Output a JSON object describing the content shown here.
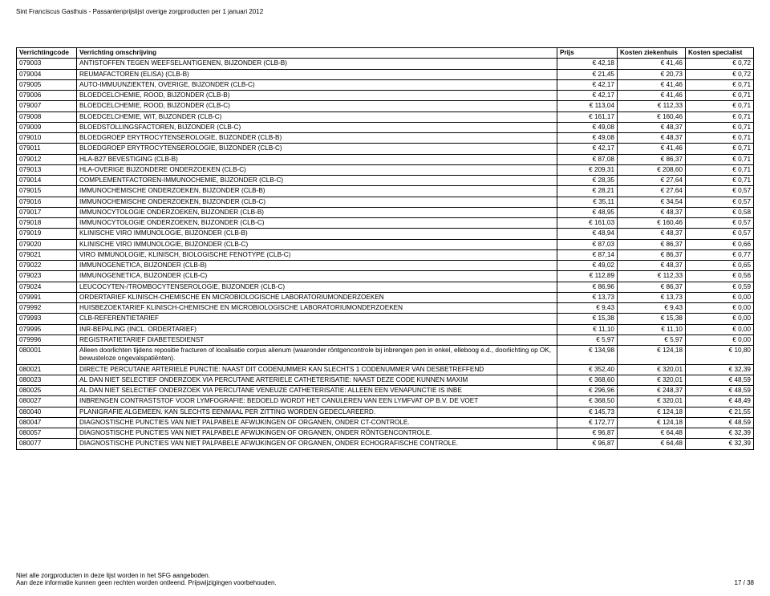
{
  "header": {
    "title": "Sint Franciscus Gasthuis - Passantenprijslijst overige zorgproducten per 1 januari 2012"
  },
  "table": {
    "columns": [
      "Verrichtingcode",
      "Verrichting omschrijving",
      "Prijs",
      "Kosten ziekenhuis",
      "Kosten specialist"
    ],
    "rows": [
      [
        "079003",
        "ANTISTOFFEN TEGEN WEEFSELANTIGENEN, BIJZONDER (CLB-B)",
        "€ 42,18",
        "€ 41,46",
        "€ 0,72"
      ],
      [
        "079004",
        "REUMAFACTOREN (ELISA) (CLB-B)",
        "€ 21,45",
        "€ 20,73",
        "€ 0,72"
      ],
      [
        "079005",
        "AUTO-IMMUUNZIEKTEN, OVERIGE, BIJZONDER (CLB-C)",
        "€ 42,17",
        "€ 41,46",
        "€ 0,71"
      ],
      [
        "079006",
        "BLOEDCELCHEMIE, ROOD, BIJZONDER (CLB-B)",
        "€ 42,17",
        "€ 41,46",
        "€ 0,71"
      ],
      [
        "079007",
        "BLOEDCELCHEMIE, ROOD, BIJZONDER (CLB-C)",
        "€ 113,04",
        "€ 112,33",
        "€ 0,71"
      ],
      [
        "079008",
        "BLOEDCELCHEMIE, WIT, BIJZONDER (CLB-C)",
        "€ 161,17",
        "€ 160,46",
        "€ 0,71"
      ],
      [
        "079009",
        "BLOEDSTOLLINGSFACTOREN, BIJZONDER (CLB-C)",
        "€ 49,08",
        "€ 48,37",
        "€ 0,71"
      ],
      [
        "079010",
        "BLOEDGROEP ERYTROCYTENSEROLOGIE, BIJZONDER (CLB-B)",
        "€ 49,08",
        "€ 48,37",
        "€ 0,71"
      ],
      [
        "079011",
        "BLOEDGROEP ERYTROCYTENSEROLOGIE, BIJZONDER (CLB-C)",
        "€ 42,17",
        "€ 41,46",
        "€ 0,71"
      ],
      [
        "079012",
        "HLA-B27 BEVESTIGING (CLB-B)",
        "€ 87,08",
        "€ 86,37",
        "€ 0,71"
      ],
      [
        "079013",
        "HLA-OVERIGE BIJZONDERE ONDERZOEKEN (CLB-C)",
        "€ 209,31",
        "€ 208,60",
        "€ 0,71"
      ],
      [
        "079014",
        "COMPLEMENTFACTOREN-IMMUNOCHEMIE, BIJZONDER (CLB-C)",
        "€ 28,35",
        "€ 27,64",
        "€ 0,71"
      ],
      [
        "079015",
        "IMMUNOCHEMISCHE ONDERZOEKEN, BIJZONDER (CLB-B)",
        "€ 28,21",
        "€ 27,64",
        "€ 0,57"
      ],
      [
        "079016",
        "IMMUNOCHEMISCHE ONDERZOEKEN, BIJZONDER (CLB-C)",
        "€ 35,11",
        "€ 34,54",
        "€ 0,57"
      ],
      [
        "079017",
        "IMMUNOCYTOLOGIE ONDERZOEKEN, BIJZONDER (CLB-B)",
        "€ 48,95",
        "€ 48,37",
        "€ 0,58"
      ],
      [
        "079018",
        "IMMUNOCYTOLOGIE ONDERZOEKEN, BIJZONDER (CLB-C)",
        "€ 161,03",
        "€ 160,46",
        "€ 0,57"
      ],
      [
        "079019",
        "KLINISCHE VIRO IMMUNOLOGIE, BIJZONDER (CLB-B)",
        "€ 48,94",
        "€ 48,37",
        "€ 0,57"
      ],
      [
        "079020",
        "KLINISCHE VIRO IMMUNOLOGIE, BIJZONDER (CLB-C)",
        "€ 87,03",
        "€ 86,37",
        "€ 0,66"
      ],
      [
        "079021",
        "VIRO IMMUNOLOGIE, KLINISCH, BIOLOGISCHE FENOTYPE (CLB-C)",
        "€ 87,14",
        "€ 86,37",
        "€ 0,77"
      ],
      [
        "079022",
        "IMMUNOGENETICA, BIJZONDER (CLB-B)",
        "€ 49,02",
        "€ 48,37",
        "€ 0,65"
      ],
      [
        "079023",
        "IMMUNOGENETICA, BIJZONDER (CLB-C)",
        "€ 112,89",
        "€ 112,33",
        "€ 0,56"
      ],
      [
        "079024",
        "LEUCOCYTEN-/TROMBOCYTENSEROLOGIE, BIJZONDER (CLB-C)",
        "€ 86,96",
        "€ 86,37",
        "€ 0,59"
      ],
      [
        "079991",
        "ORDERTARIEF KLINISCH-CHEMISCHE EN MICROBIOLOGISCHE LABORATORIUMONDERZOEKEN",
        "€ 13,73",
        "€ 13,73",
        "€ 0,00"
      ],
      [
        "079992",
        "HUISBEZOEKTARIEF KLINISCH-CHEMISCHE EN MICROBIOLOGISCHE LABORATORIUMONDERZOEKEN",
        "€ 9,43",
        "€ 9,43",
        "€ 0,00"
      ],
      [
        "079993",
        "CLB-REFERENTIETARIEF",
        "€ 15,38",
        "€ 15,38",
        "€ 0,00"
      ],
      [
        "079995",
        "INR-BEPALING (INCL. ORDERTARIEF)",
        "€ 11,10",
        "€ 11,10",
        "€ 0,00"
      ],
      [
        "079996",
        "REGISTRATIETARIEF DIABETESDIENST",
        "€ 5,97",
        "€ 5,97",
        "€ 0,00"
      ],
      [
        "080001",
        "Alleen doorlichten tijdens repositie fracturen of localisatie corpus alienum (waaronder röntgencontrole bij inbrengen pen in enkel, elleboog e.d., doorlichting op OK, bewusteloze ongevalspatiënten).",
        "€ 134,98",
        "€ 124,18",
        "€ 10,80"
      ],
      [
        "080021",
        "DIRECTE PERCUTANE ARTERIELE PUNCTIE: NAAST DIT CODENUMMER KAN SLECHTS 1 CODENUMMER VAN DESBETREFFEND",
        "€ 352,40",
        "€ 320,01",
        "€ 32,39"
      ],
      [
        "080023",
        "AL DAN NIET SELECTIEF ONDERZOEK VIA PERCUTANE ARTERIELE CATHETERISATIE: NAAST DEZE CODE KUNNEN MAXIM",
        "€ 368,60",
        "€ 320,01",
        "€ 48,59"
      ],
      [
        "080025",
        "AL DAN NIET SELECTIEF ONDERZOEK VIA PERCUTANE VENEUZE CATHETERISATIE: ALLEEN EEN VENAPUNCTIE IS INBE",
        "€ 296,96",
        "€ 248,37",
        "€ 48,59"
      ],
      [
        "080027",
        "INBRENGEN CONTRASTSTOF VOOR LYMFOGRAFIE: BEDOELD WORDT HET CANULEREN VAN EEN LYMFVAT OP B.V. DE VOET",
        "€ 368,50",
        "€ 320,01",
        "€ 48,49"
      ],
      [
        "080040",
        "PLANIGRAFIE ALGEMEEN. KAN SLECHTS EENMAAL PER ZITTING WORDEN GEDECLAREERD.",
        "€ 145,73",
        "€ 124,18",
        "€ 21,55"
      ],
      [
        "080047",
        "DIAGNOSTISCHE PUNCTIES VAN NIET PALPABELE AFWIJKINGEN OF ORGANEN, ONDER CT-CONTROLE.",
        "€ 172,77",
        "€ 124,18",
        "€ 48,59"
      ],
      [
        "080057",
        "DIAGNOSTISCHE PUNCTIES VAN NIET PALPABELE AFWIJKINGEN OF ORGANEN, ONDER RÖNTGENCONTROLE.",
        "€ 96,87",
        "€ 64,48",
        "€ 32,39"
      ],
      [
        "080077",
        "DIAGNOSTISCHE PUNCTIES VAN NIET PALPABELE AFWIJKINGEN OF ORGANEN, ONDER ECHOGRAFISCHE CONTROLE.",
        "€ 96,87",
        "€ 64,48",
        "€ 32,39"
      ]
    ]
  },
  "footer": {
    "line1": "Niet alle zorgproducten in deze lijst worden in het SFG aangeboden.",
    "line2": "Aan deze informatie kunnen geen rechten worden ontleend. Prijswijzigingen voorbehouden.",
    "page": "17 / 38"
  }
}
